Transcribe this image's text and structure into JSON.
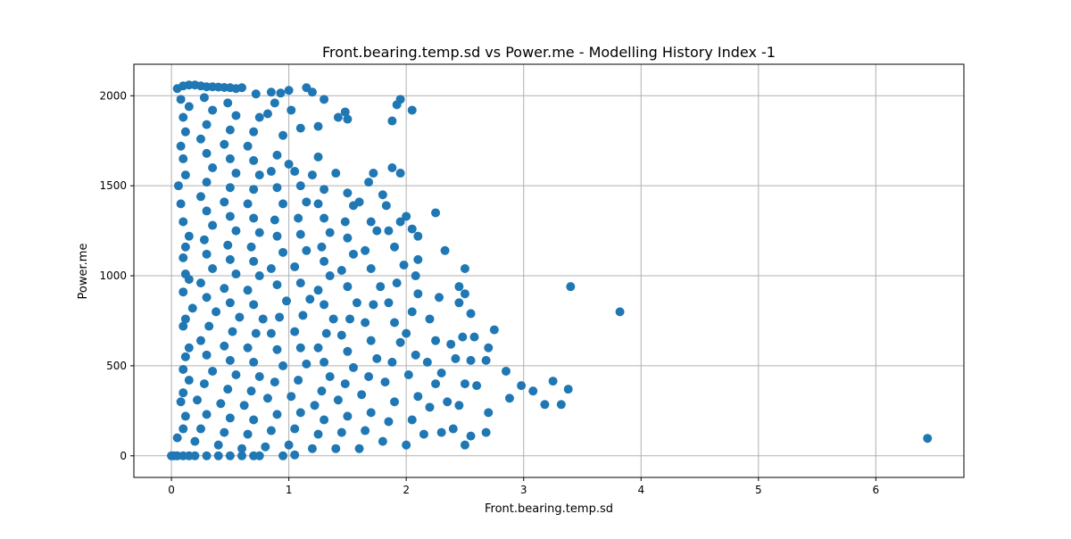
{
  "chart_data": {
    "type": "scatter",
    "title": "Front.bearing.temp.sd vs Power.me - Modelling History Index -1",
    "xlabel": "Front.bearing.temp.sd",
    "ylabel": "Power.me",
    "xlim": [
      -0.32,
      6.75
    ],
    "ylim": [
      -120,
      2175
    ],
    "xticks": [
      0,
      1,
      2,
      3,
      4,
      5,
      6
    ],
    "yticks": [
      0,
      500,
      1000,
      1500,
      2000
    ],
    "grid": true,
    "legend": "none",
    "marker_color": "#1f77b4",
    "series": [
      {
        "points": [
          [
            0.0,
            0
          ],
          [
            0.02,
            0
          ],
          [
            0.05,
            0
          ],
          [
            0.1,
            0
          ],
          [
            0.15,
            0
          ],
          [
            0.2,
            0
          ],
          [
            0.3,
            0
          ],
          [
            0.4,
            0
          ],
          [
            0.5,
            0
          ],
          [
            0.6,
            0
          ],
          [
            0.7,
            0
          ],
          [
            0.75,
            0
          ],
          [
            0.95,
            0
          ],
          [
            1.05,
            5
          ],
          [
            0.05,
            100
          ],
          [
            0.1,
            150
          ],
          [
            0.12,
            220
          ],
          [
            0.08,
            300
          ],
          [
            0.1,
            350
          ],
          [
            0.15,
            420
          ],
          [
            0.1,
            480
          ],
          [
            0.12,
            550
          ],
          [
            0.15,
            600
          ],
          [
            0.1,
            720
          ],
          [
            0.12,
            760
          ],
          [
            0.18,
            820
          ],
          [
            0.1,
            910
          ],
          [
            0.15,
            980
          ],
          [
            0.12,
            1010
          ],
          [
            0.1,
            1100
          ],
          [
            0.12,
            1160
          ],
          [
            0.15,
            1220
          ],
          [
            0.1,
            1300
          ],
          [
            0.08,
            1400
          ],
          [
            0.06,
            1500
          ],
          [
            0.12,
            1560
          ],
          [
            0.1,
            1650
          ],
          [
            0.08,
            1720
          ],
          [
            0.12,
            1800
          ],
          [
            0.1,
            1880
          ],
          [
            0.15,
            1940
          ],
          [
            0.08,
            1980
          ],
          [
            0.05,
            2040
          ],
          [
            0.1,
            2055
          ],
          [
            0.15,
            2060
          ],
          [
            0.2,
            2060
          ],
          [
            0.25,
            2055
          ],
          [
            0.3,
            2050
          ],
          [
            0.35,
            2050
          ],
          [
            0.4,
            2048
          ],
          [
            0.45,
            2046
          ],
          [
            0.5,
            2045
          ],
          [
            0.55,
            2040
          ],
          [
            0.6,
            2045
          ],
          [
            0.2,
            80
          ],
          [
            0.25,
            150
          ],
          [
            0.3,
            230
          ],
          [
            0.22,
            310
          ],
          [
            0.28,
            400
          ],
          [
            0.35,
            470
          ],
          [
            0.3,
            560
          ],
          [
            0.25,
            640
          ],
          [
            0.32,
            720
          ],
          [
            0.38,
            800
          ],
          [
            0.3,
            880
          ],
          [
            0.25,
            960
          ],
          [
            0.35,
            1040
          ],
          [
            0.3,
            1120
          ],
          [
            0.28,
            1200
          ],
          [
            0.35,
            1280
          ],
          [
            0.3,
            1360
          ],
          [
            0.25,
            1440
          ],
          [
            0.3,
            1520
          ],
          [
            0.35,
            1600
          ],
          [
            0.3,
            1680
          ],
          [
            0.25,
            1760
          ],
          [
            0.3,
            1840
          ],
          [
            0.35,
            1920
          ],
          [
            0.28,
            1990
          ],
          [
            0.4,
            60
          ],
          [
            0.45,
            130
          ],
          [
            0.5,
            210
          ],
          [
            0.42,
            290
          ],
          [
            0.48,
            370
          ],
          [
            0.55,
            450
          ],
          [
            0.5,
            530
          ],
          [
            0.45,
            610
          ],
          [
            0.52,
            690
          ],
          [
            0.58,
            770
          ],
          [
            0.5,
            850
          ],
          [
            0.45,
            930
          ],
          [
            0.55,
            1010
          ],
          [
            0.5,
            1090
          ],
          [
            0.48,
            1170
          ],
          [
            0.55,
            1250
          ],
          [
            0.5,
            1330
          ],
          [
            0.45,
            1410
          ],
          [
            0.5,
            1490
          ],
          [
            0.55,
            1570
          ],
          [
            0.5,
            1650
          ],
          [
            0.45,
            1730
          ],
          [
            0.5,
            1810
          ],
          [
            0.55,
            1890
          ],
          [
            0.48,
            1960
          ],
          [
            0.6,
            40
          ],
          [
            0.65,
            120
          ],
          [
            0.7,
            200
          ],
          [
            0.62,
            280
          ],
          [
            0.68,
            360
          ],
          [
            0.75,
            440
          ],
          [
            0.7,
            520
          ],
          [
            0.65,
            600
          ],
          [
            0.72,
            680
          ],
          [
            0.78,
            760
          ],
          [
            0.7,
            840
          ],
          [
            0.65,
            920
          ],
          [
            0.75,
            1000
          ],
          [
            0.7,
            1080
          ],
          [
            0.68,
            1160
          ],
          [
            0.75,
            1240
          ],
          [
            0.7,
            1320
          ],
          [
            0.65,
            1400
          ],
          [
            0.7,
            1480
          ],
          [
            0.75,
            1560
          ],
          [
            0.7,
            1640
          ],
          [
            0.65,
            1720
          ],
          [
            0.7,
            1800
          ],
          [
            0.75,
            1880
          ],
          [
            0.72,
            2010
          ],
          [
            0.8,
            50
          ],
          [
            0.85,
            140
          ],
          [
            0.9,
            230
          ],
          [
            0.82,
            320
          ],
          [
            0.88,
            410
          ],
          [
            0.95,
            500
          ],
          [
            0.9,
            590
          ],
          [
            0.85,
            680
          ],
          [
            0.92,
            770
          ],
          [
            0.98,
            860
          ],
          [
            0.9,
            950
          ],
          [
            0.85,
            1040
          ],
          [
            0.95,
            1130
          ],
          [
            0.9,
            1220
          ],
          [
            0.88,
            1310
          ],
          [
            0.95,
            1400
          ],
          [
            0.9,
            1490
          ],
          [
            0.85,
            1580
          ],
          [
            0.9,
            1670
          ],
          [
            0.95,
            1780
          ],
          [
            0.88,
            1960
          ],
          [
            0.82,
            1900
          ],
          [
            0.93,
            2015
          ],
          [
            1.0,
            2030
          ],
          [
            0.85,
            2020
          ],
          [
            1.0,
            60
          ],
          [
            1.05,
            150
          ],
          [
            1.1,
            240
          ],
          [
            1.02,
            330
          ],
          [
            1.08,
            420
          ],
          [
            1.15,
            510
          ],
          [
            1.1,
            600
          ],
          [
            1.05,
            690
          ],
          [
            1.12,
            780
          ],
          [
            1.18,
            870
          ],
          [
            1.1,
            960
          ],
          [
            1.05,
            1050
          ],
          [
            1.15,
            1140
          ],
          [
            1.1,
            1230
          ],
          [
            1.08,
            1320
          ],
          [
            1.15,
            1410
          ],
          [
            1.1,
            1500
          ],
          [
            1.05,
            1580
          ],
          [
            1.0,
            1620
          ],
          [
            1.1,
            1820
          ],
          [
            1.02,
            1920
          ],
          [
            1.15,
            2045
          ],
          [
            1.2,
            2020
          ],
          [
            1.3,
            1980
          ],
          [
            1.25,
            1830
          ],
          [
            1.2,
            40
          ],
          [
            1.25,
            120
          ],
          [
            1.3,
            200
          ],
          [
            1.22,
            280
          ],
          [
            1.28,
            360
          ],
          [
            1.35,
            440
          ],
          [
            1.3,
            520
          ],
          [
            1.25,
            600
          ],
          [
            1.32,
            680
          ],
          [
            1.38,
            760
          ],
          [
            1.3,
            840
          ],
          [
            1.25,
            920
          ],
          [
            1.35,
            1000
          ],
          [
            1.3,
            1080
          ],
          [
            1.28,
            1160
          ],
          [
            1.35,
            1240
          ],
          [
            1.3,
            1320
          ],
          [
            1.25,
            1400
          ],
          [
            1.3,
            1480
          ],
          [
            1.2,
            1560
          ],
          [
            1.25,
            1660
          ],
          [
            1.4,
            1570
          ],
          [
            1.42,
            1880
          ],
          [
            1.48,
            1910
          ],
          [
            1.5,
            1870
          ],
          [
            1.4,
            40
          ],
          [
            1.45,
            130
          ],
          [
            1.5,
            220
          ],
          [
            1.42,
            310
          ],
          [
            1.48,
            400
          ],
          [
            1.55,
            490
          ],
          [
            1.5,
            580
          ],
          [
            1.45,
            670
          ],
          [
            1.52,
            760
          ],
          [
            1.58,
            850
          ],
          [
            1.5,
            940
          ],
          [
            1.45,
            1030
          ],
          [
            1.55,
            1120
          ],
          [
            1.5,
            1210
          ],
          [
            1.48,
            1300
          ],
          [
            1.55,
            1390
          ],
          [
            1.5,
            1460
          ],
          [
            1.6,
            1410
          ],
          [
            1.6,
            40
          ],
          [
            1.65,
            140
          ],
          [
            1.7,
            240
          ],
          [
            1.62,
            340
          ],
          [
            1.68,
            440
          ],
          [
            1.75,
            540
          ],
          [
            1.7,
            640
          ],
          [
            1.65,
            740
          ],
          [
            1.72,
            840
          ],
          [
            1.78,
            940
          ],
          [
            1.7,
            1040
          ],
          [
            1.65,
            1140
          ],
          [
            1.75,
            1250
          ],
          [
            1.7,
            1300
          ],
          [
            1.68,
            1520
          ],
          [
            1.72,
            1570
          ],
          [
            1.8,
            1450
          ],
          [
            1.83,
            1390
          ],
          [
            1.8,
            80
          ],
          [
            1.85,
            190
          ],
          [
            1.9,
            300
          ],
          [
            1.82,
            410
          ],
          [
            1.88,
            520
          ],
          [
            1.95,
            630
          ],
          [
            1.9,
            740
          ],
          [
            1.85,
            850
          ],
          [
            1.92,
            960
          ],
          [
            1.98,
            1060
          ],
          [
            1.9,
            1160
          ],
          [
            1.85,
            1250
          ],
          [
            1.95,
            1300
          ],
          [
            1.88,
            1600
          ],
          [
            1.95,
            1570
          ],
          [
            1.88,
            1860
          ],
          [
            1.92,
            1950
          ],
          [
            1.95,
            1980
          ],
          [
            2.05,
            1920
          ],
          [
            2.0,
            60
          ],
          [
            2.05,
            200
          ],
          [
            2.1,
            330
          ],
          [
            2.02,
            450
          ],
          [
            2.08,
            560
          ],
          [
            2.0,
            680
          ],
          [
            2.05,
            800
          ],
          [
            2.1,
            900
          ],
          [
            2.08,
            1000
          ],
          [
            2.1,
            1090
          ],
          [
            2.1,
            1220
          ],
          [
            2.0,
            1330
          ],
          [
            2.05,
            1260
          ],
          [
            2.15,
            120
          ],
          [
            2.2,
            270
          ],
          [
            2.25,
            400
          ],
          [
            2.18,
            520
          ],
          [
            2.25,
            640
          ],
          [
            2.2,
            760
          ],
          [
            2.28,
            880
          ],
          [
            2.25,
            1350
          ],
          [
            2.3,
            130
          ],
          [
            2.35,
            300
          ],
          [
            2.3,
            460
          ],
          [
            2.38,
            620
          ],
          [
            2.33,
            1140
          ],
          [
            2.4,
            150
          ],
          [
            2.45,
            280
          ],
          [
            2.5,
            400
          ],
          [
            2.42,
            540
          ],
          [
            2.48,
            660
          ],
          [
            2.45,
            850
          ],
          [
            2.45,
            940
          ],
          [
            2.5,
            900
          ],
          [
            2.5,
            1040
          ],
          [
            2.5,
            60
          ],
          [
            2.55,
            110
          ],
          [
            2.6,
            390
          ],
          [
            2.55,
            530
          ],
          [
            2.58,
            660
          ],
          [
            2.55,
            790
          ],
          [
            2.68,
            130
          ],
          [
            2.7,
            240
          ],
          [
            2.68,
            530
          ],
          [
            2.7,
            600
          ],
          [
            2.75,
            700
          ],
          [
            2.85,
            470
          ],
          [
            2.88,
            320
          ],
          [
            2.98,
            390
          ],
          [
            3.08,
            360
          ],
          [
            3.18,
            285
          ],
          [
            3.25,
            415
          ],
          [
            3.32,
            285
          ],
          [
            3.38,
            370
          ],
          [
            3.4,
            940
          ],
          [
            3.82,
            800
          ],
          [
            6.44,
            97
          ]
        ]
      }
    ]
  }
}
